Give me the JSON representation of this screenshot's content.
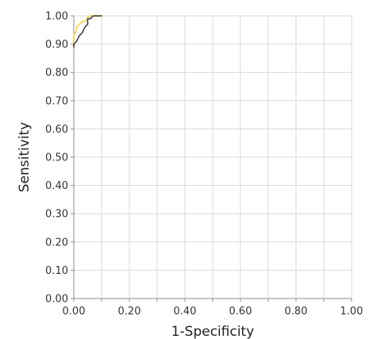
{
  "chart_data": {
    "type": "line",
    "title": "",
    "xlabel": "1-Specificity",
    "ylabel": "Sensitivity",
    "xlim": [
      0,
      1
    ],
    "ylim": [
      0,
      1
    ],
    "grid": true,
    "x_ticks": [
      0,
      0.1,
      0.2,
      0.3,
      0.4,
      0.5,
      0.6,
      0.7,
      0.8,
      0.9,
      1.0
    ],
    "x_tick_labels": [
      "0.00",
      "",
      "0.20",
      "",
      "0.40",
      "",
      "0.60",
      "",
      "0.80",
      "",
      "1.00"
    ],
    "y_ticks": [
      0,
      0.1,
      0.2,
      0.3,
      0.4,
      0.5,
      0.6,
      0.7,
      0.8,
      0.9,
      1.0
    ],
    "y_tick_labels": [
      "0.00",
      "0.10",
      "0.20",
      "0.30",
      "0.40",
      "0.50",
      "0.60",
      "0.70",
      "0.80",
      "0.90",
      "1.00"
    ],
    "series": [
      {
        "color": "#f0dc78",
        "x": [
          0.0,
          0.0,
          0.01,
          0.01,
          0.02,
          0.03,
          0.04,
          0.05,
          0.05,
          0.06,
          0.08,
          0.1
        ],
        "y": [
          0.89,
          0.93,
          0.95,
          0.96,
          0.97,
          0.98,
          0.98,
          0.99,
          0.995,
          1.0,
          1.0,
          1.0
        ]
      },
      {
        "color": "#404040",
        "x": [
          0.0,
          0.0,
          0.01,
          0.02,
          0.03,
          0.04,
          0.05,
          0.05,
          0.06,
          0.07,
          0.1
        ],
        "y": [
          0.89,
          0.9,
          0.91,
          0.93,
          0.94,
          0.96,
          0.97,
          0.99,
          0.99,
          1.0,
          1.0
        ]
      }
    ]
  }
}
